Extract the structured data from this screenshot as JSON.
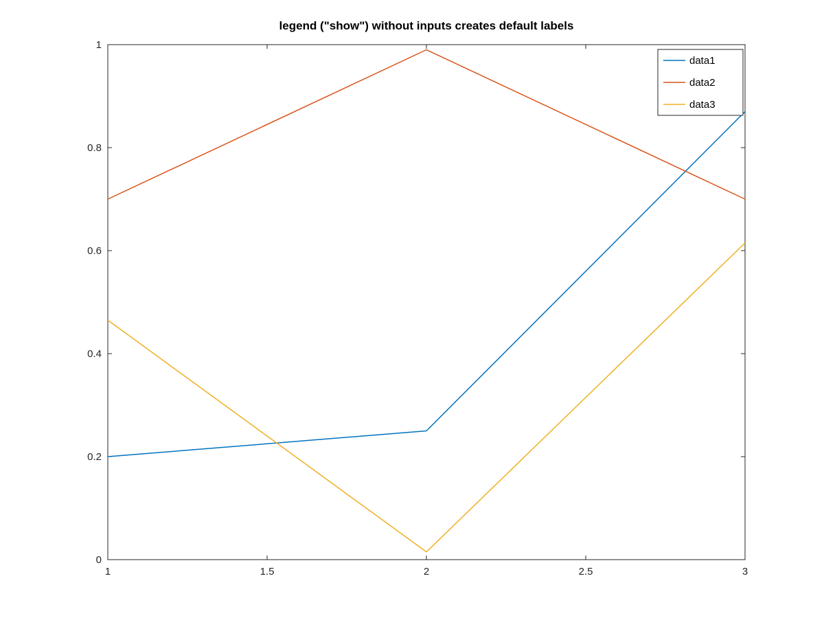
{
  "title": "legend (\"show\") without inputs creates default labels",
  "chart_data": {
    "type": "line",
    "title": "legend (\"show\") without inputs creates default labels",
    "x": [
      1,
      2,
      3
    ],
    "series": [
      {
        "name": "data1",
        "color": "#0072BD",
        "values": [
          0.2,
          0.25,
          0.87
        ]
      },
      {
        "name": "data2",
        "color": "#D95319",
        "values": [
          0.7,
          0.99,
          0.7
        ]
      },
      {
        "name": "data3",
        "color": "#EDB120",
        "values": [
          0.465,
          0.015,
          0.615
        ]
      }
    ],
    "xlim": [
      1,
      3
    ],
    "ylim": [
      0,
      1
    ],
    "xticks": [
      1,
      1.5,
      2,
      2.5,
      3
    ],
    "xtick_labels": [
      "1",
      "1.5",
      "2",
      "2.5",
      "3"
    ],
    "yticks": [
      0,
      0.2,
      0.4,
      0.6,
      0.8,
      1
    ],
    "ytick_labels": [
      "0",
      "0.2",
      "0.4",
      "0.6",
      "0.8",
      "1"
    ],
    "xlabel": "",
    "ylabel": "",
    "grid": false,
    "legend": {
      "position": "top-right",
      "entries": [
        "data1",
        "data2",
        "data3"
      ]
    },
    "axis_color": "#262626",
    "background_color": "#ffffff"
  }
}
